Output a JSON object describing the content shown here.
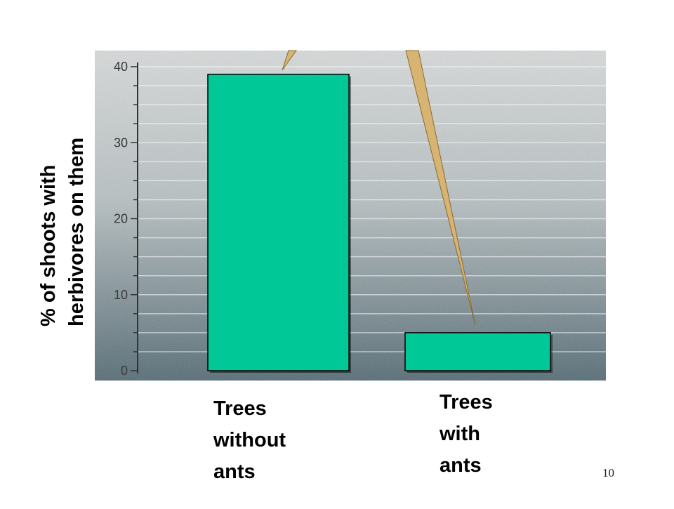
{
  "chart_data": {
    "type": "bar",
    "ylabel_lines": [
      "% of shoots with",
      "herbivores on them"
    ],
    "ylim": [
      0,
      40
    ],
    "yticks": [
      "0",
      "10",
      "20",
      "30",
      "40"
    ],
    "grid": true,
    "categories": [
      "Trees without ants",
      "Trees with ants"
    ],
    "category_label_lines": [
      [
        "Trees",
        "without",
        "ants"
      ],
      [
        "Trees",
        "with",
        "ants"
      ]
    ],
    "values": [
      39,
      5
    ],
    "colors": {
      "bar": "#00c896",
      "bar_edge": "#000000",
      "plot_top": "#d9dcdc",
      "plot_bottom": "#4e6670"
    }
  },
  "slide_number": "10"
}
